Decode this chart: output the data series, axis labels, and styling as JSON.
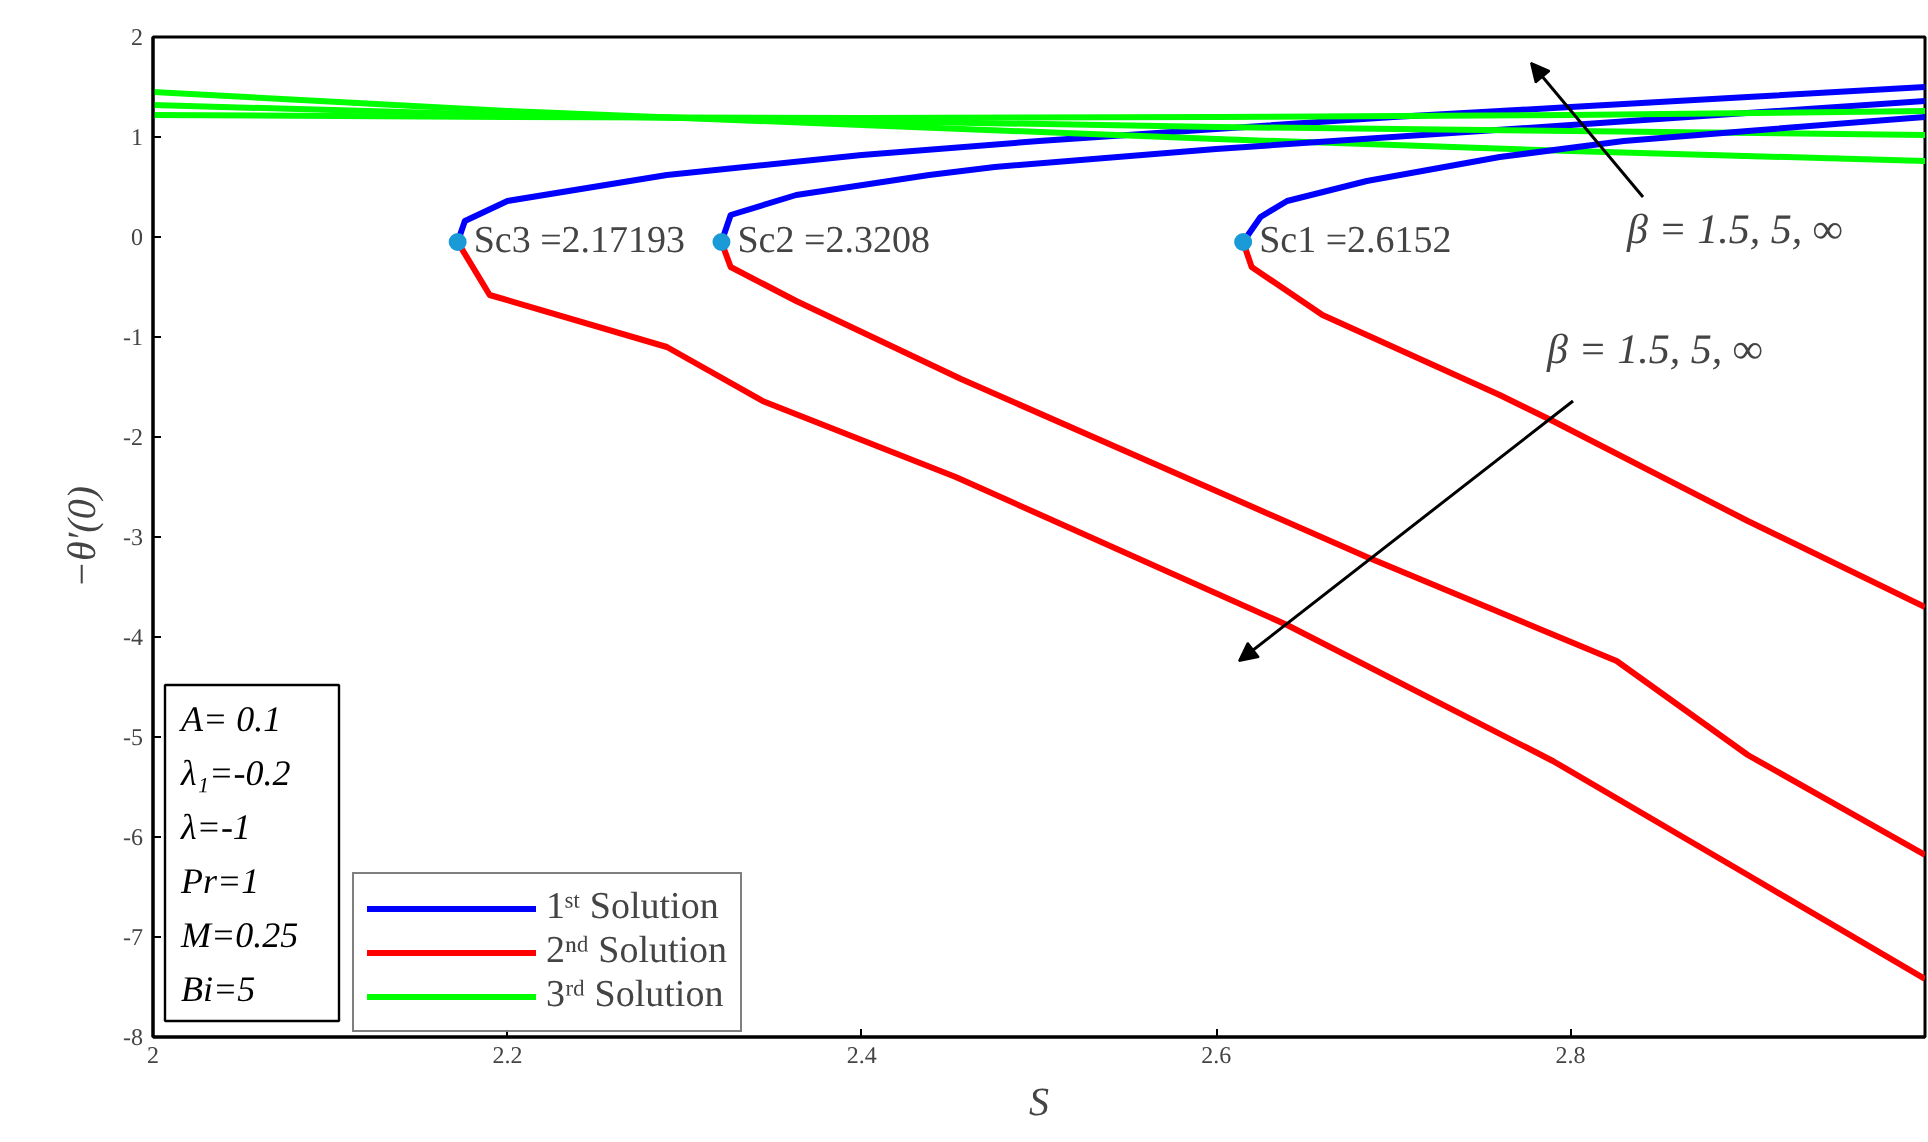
{
  "chart_data": {
    "type": "line",
    "xlabel": "S",
    "ylabel": "−θ′(0)",
    "xlim": [
      2,
      3
    ],
    "ylim": [
      -8,
      2
    ],
    "xticks": [
      2,
      2.2,
      2.4,
      2.6,
      2.8
    ],
    "yticks": [
      -8,
      -7,
      -6,
      -5,
      -4,
      -3,
      -2,
      -1,
      0,
      1,
      2
    ],
    "grid": false,
    "legend": "bottom left",
    "line_style": "solid",
    "marker": "none",
    "series": [
      {
        "name": "1ˢᵗ Solution",
        "color": "#0000ff",
        "x": [
          2.17193,
          2.176,
          2.2,
          2.29,
          2.4,
          2.5,
          2.6,
          2.7,
          2.8,
          2.9,
          3.0
        ],
        "values": [
          -0.05,
          0.16,
          0.36,
          0.62,
          0.82,
          0.96,
          1.08,
          1.2,
          1.3,
          1.4,
          1.5
        ]
      },
      {
        "name": "2ⁿᵈ Solution",
        "color": "#ff0000",
        "x": [
          2.17193,
          2.19,
          2.29,
          2.344,
          2.453,
          2.64,
          2.79,
          2.9,
          3.0
        ],
        "values": [
          -0.05,
          -0.58,
          -1.1,
          -1.64,
          -2.4,
          -3.88,
          -5.24,
          -6.38,
          -7.42
        ]
      },
      {
        "name": "3ʳᵈ Solution",
        "color": "#00ff00",
        "x": [
          2.0,
          2.2,
          2.4,
          2.6,
          2.8,
          3.0
        ],
        "values": [
          1.45,
          1.26,
          1.12,
          0.98,
          0.86,
          0.76
        ]
      },
      {
        "color": "#0000ff",
        "x": [
          2.3208,
          2.326,
          2.363,
          2.438,
          2.475,
          2.6,
          2.8,
          3.0
        ],
        "values": [
          -0.05,
          0.22,
          0.42,
          0.62,
          0.7,
          0.88,
          1.12,
          1.36
        ]
      },
      {
        "color": "#ff0000",
        "x": [
          2.3208,
          2.326,
          2.363,
          2.456,
          2.685,
          2.826,
          2.9,
          3.0
        ],
        "values": [
          -0.05,
          -0.3,
          -0.64,
          -1.42,
          -3.2,
          -4.24,
          -5.18,
          -6.18
        ]
      },
      {
        "color": "#00ff00",
        "x": [
          2.0,
          2.2,
          2.4,
          2.6,
          2.8,
          3.0
        ],
        "values": [
          1.32,
          1.22,
          1.16,
          1.1,
          1.06,
          1.02
        ]
      },
      {
        "color": "#0000ff",
        "x": [
          2.6152,
          2.625,
          2.64,
          2.685,
          2.76,
          2.83,
          2.9,
          3.0
        ],
        "values": [
          -0.05,
          0.2,
          0.36,
          0.56,
          0.8,
          0.96,
          1.06,
          1.2
        ]
      },
      {
        "color": "#ff0000",
        "x": [
          2.6152,
          2.62,
          2.66,
          2.76,
          2.79,
          2.9,
          3.0
        ],
        "values": [
          -0.05,
          -0.3,
          -0.78,
          -1.58,
          -1.84,
          -2.84,
          -3.7
        ]
      },
      {
        "color": "#00ff00",
        "x": [
          2.0,
          2.2,
          2.4,
          2.6,
          2.8,
          3.0
        ],
        "values": [
          1.22,
          1.2,
          1.19,
          1.2,
          1.22,
          1.26
        ]
      },
      {
        "type": "scatter",
        "marker": "circle",
        "color": "#1a9ad6",
        "x": [
          2.17193,
          2.3208,
          2.6152
        ],
        "values": [
          -0.05,
          -0.05,
          -0.05
        ]
      }
    ],
    "annotations": [
      {
        "text": "Sc3 =2.17193",
        "x": 2.17193,
        "y": -0.05
      },
      {
        "text": "Sc2 =2.3208",
        "x": 2.3208,
        "y": -0.05
      },
      {
        "text": "Sc1 =2.6152",
        "x": 2.6152,
        "y": -0.05
      },
      "β = 1.5, 5, ∞",
      "β = 1.5, 5, ∞",
      "A= 0.1",
      "λ₁=-0.2",
      "λ=-1",
      "Pr=1",
      "M=0.25",
      "Bi=5"
    ]
  }
}
